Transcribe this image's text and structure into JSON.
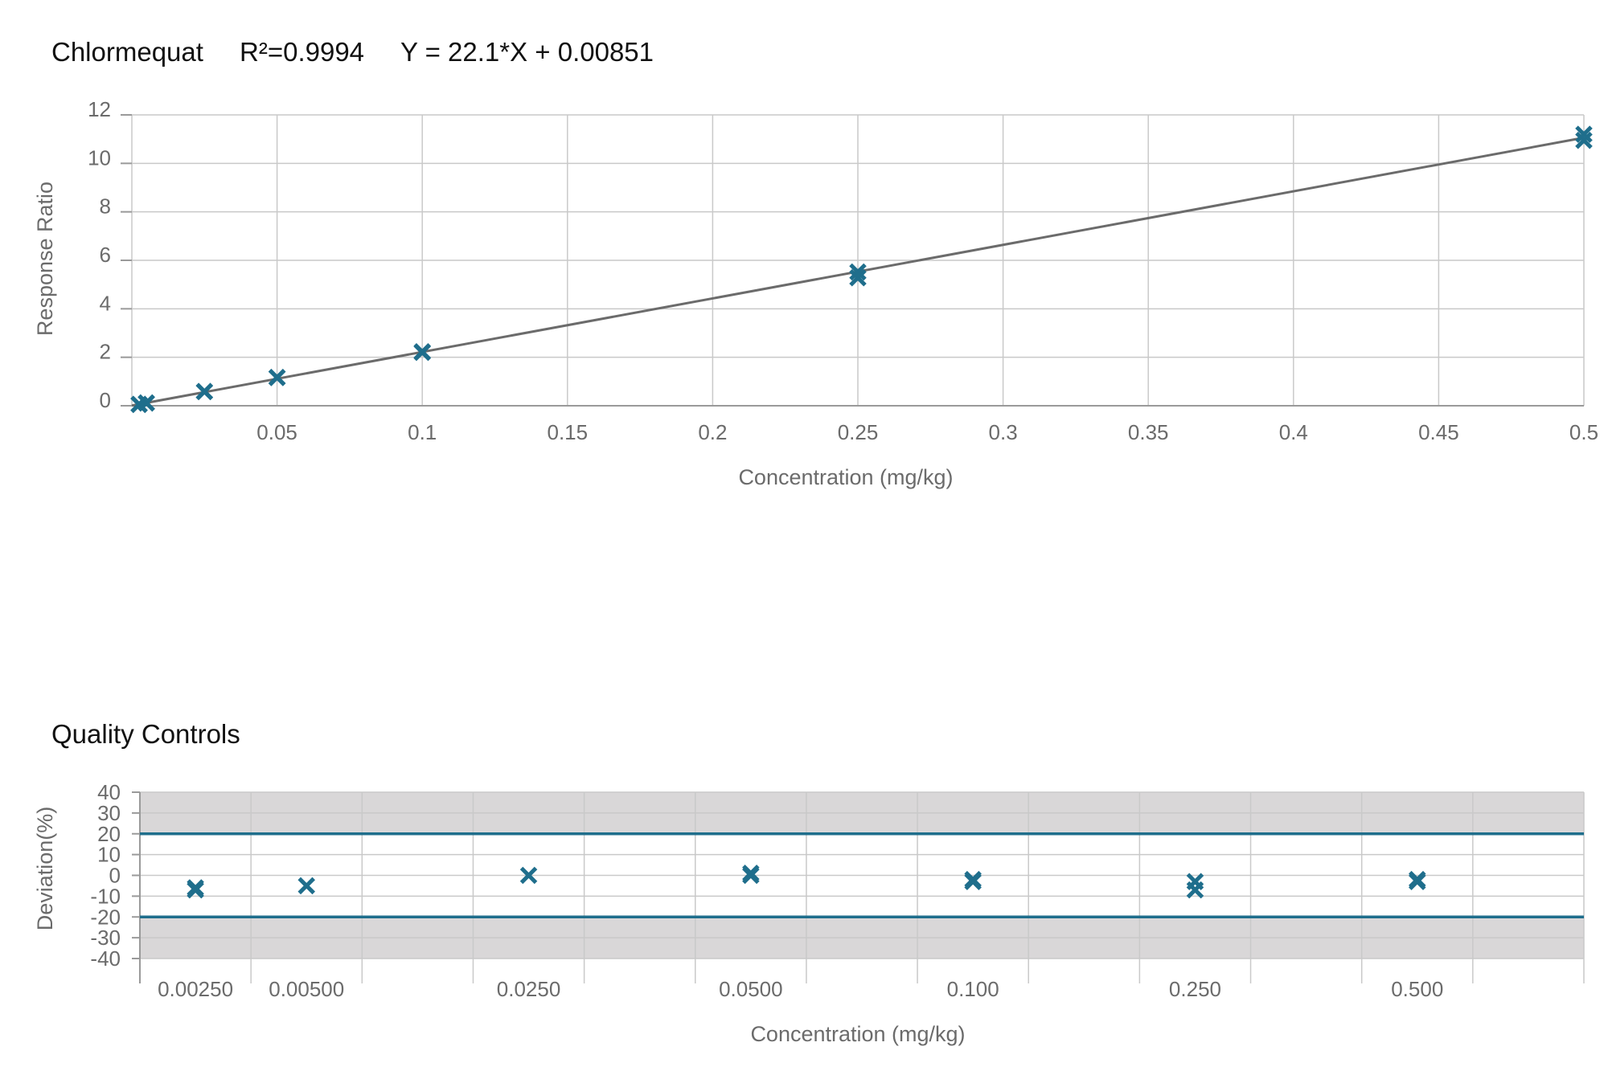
{
  "chart_data": [
    {
      "type": "scatter",
      "title": "Chlormequat",
      "r2_text": "R²=0.9994",
      "equation_text": "Y = 22.1*X + 0.00851",
      "fit": {
        "slope": 22.1,
        "intercept": 0.00851
      },
      "xlabel": "Concentration (mg/kg)",
      "ylabel": "Response Ratio",
      "xlim": [
        0,
        0.5
      ],
      "ylim": [
        0,
        12
      ],
      "xticks": [
        0.05,
        0.1,
        0.15,
        0.2,
        0.25,
        0.3,
        0.35,
        0.4,
        0.45,
        0.5
      ],
      "xtick_labels": [
        "0.05",
        "0.1",
        "0.15",
        "0.2",
        "0.25",
        "0.3",
        "0.35",
        "0.4",
        "0.45",
        "0.5"
      ],
      "yticks": [
        0,
        2,
        4,
        6,
        8,
        10,
        12
      ],
      "ytick_labels": [
        "0",
        "2",
        "4",
        "6",
        "8",
        "10",
        "12"
      ],
      "grid": true,
      "marker_color": "#1f6e8c",
      "fit_color": "#6b6b6b",
      "points": [
        {
          "x": 0.0025,
          "y": 0.06
        },
        {
          "x": 0.0025,
          "y": 0.05
        },
        {
          "x": 0.005,
          "y": 0.12
        },
        {
          "x": 0.005,
          "y": 0.11
        },
        {
          "x": 0.025,
          "y": 0.59
        },
        {
          "x": 0.025,
          "y": 0.58
        },
        {
          "x": 0.05,
          "y": 1.17
        },
        {
          "x": 0.05,
          "y": 1.16
        },
        {
          "x": 0.1,
          "y": 2.23
        },
        {
          "x": 0.1,
          "y": 2.2
        },
        {
          "x": 0.25,
          "y": 5.52
        },
        {
          "x": 0.25,
          "y": 5.28
        },
        {
          "x": 0.5,
          "y": 11.2
        },
        {
          "x": 0.5,
          "y": 10.95
        }
      ]
    },
    {
      "type": "scatter",
      "title": "Quality Controls",
      "xlabel": "Concentration (mg/kg)",
      "ylabel": "Deviation(%)",
      "categories": [
        "0.00250",
        "0.00500",
        "",
        "0.0250",
        "",
        "0.0500",
        "",
        "0.100",
        "",
        "0.250",
        "",
        "0.500",
        ""
      ],
      "ylim": [
        -40,
        40
      ],
      "yticks": [
        40,
        30,
        20,
        10,
        0,
        -10,
        -20,
        -30,
        -40
      ],
      "ytick_labels": [
        "40",
        "30",
        "20",
        "10",
        "0",
        "-10",
        "-20",
        "-30",
        "-40"
      ],
      "limits": [
        20,
        -20
      ],
      "shaded_beyond_limits": true,
      "band_color": "#d9d7d8",
      "limit_color": "#1f6e8c",
      "marker_color": "#1f6e8c",
      "points": [
        {
          "x": "0.00250",
          "y": -7
        },
        {
          "x": "0.00250",
          "y": -6
        },
        {
          "x": "0.00500",
          "y": -5
        },
        {
          "x": "0.0250",
          "y": 0
        },
        {
          "x": "0.0500",
          "y": 1
        },
        {
          "x": "0.0500",
          "y": 0
        },
        {
          "x": "0.100",
          "y": -2
        },
        {
          "x": "0.100",
          "y": -3
        },
        {
          "x": "0.250",
          "y": -3
        },
        {
          "x": "0.250",
          "y": -7
        },
        {
          "x": "0.500",
          "y": -2
        },
        {
          "x": "0.500",
          "y": -3
        }
      ]
    }
  ]
}
